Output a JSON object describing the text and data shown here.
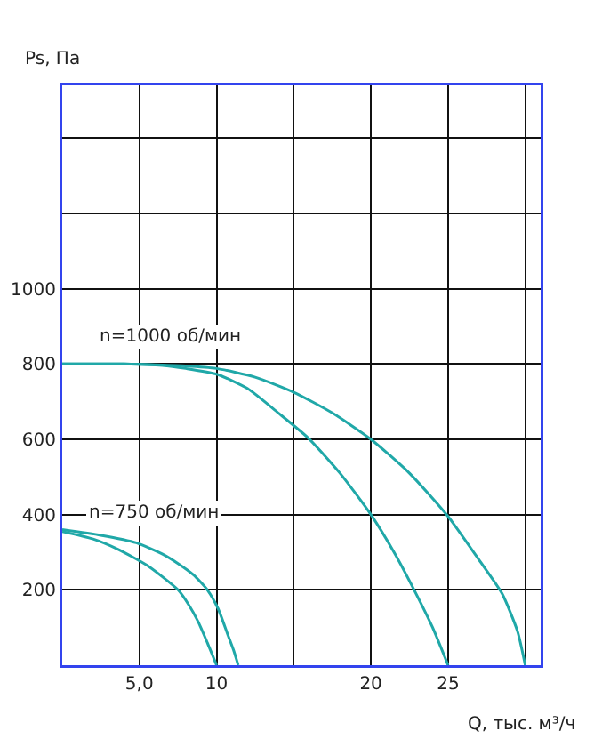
{
  "chart_data": {
    "type": "line",
    "xlabel": "Q, тыс. м³/ч",
    "ylabel": "Ps, Па",
    "xlim": [
      0,
      31
    ],
    "ylim": [
      0,
      1540
    ],
    "xticks": [
      {
        "value": 5,
        "label": "5,0"
      },
      10,
      {
        "value": 15,
        "label": null
      },
      20,
      25,
      {
        "value": 30,
        "label": null
      }
    ],
    "yticks": [
      200,
      400,
      600,
      800,
      1000,
      {
        "value": 1200,
        "label": null
      },
      {
        "value": 1400,
        "label": null
      }
    ],
    "grid": true,
    "marker": "none",
    "line_style": "solid",
    "series": [
      {
        "color": "#20a8a8",
        "x": [
          0,
          4,
          6,
          8,
          10,
          12.5,
          15,
          17.5,
          20,
          22.5,
          25,
          27,
          28.5,
          29.5,
          30
        ],
        "values": [
          800,
          800,
          798,
          795,
          788,
          765,
          725,
          670,
          600,
          510,
          395,
          280,
          190,
          90,
          0
        ]
      },
      {
        "color": "#20a8a8",
        "x": [
          0,
          4,
          6.5,
          8,
          10,
          12,
          14,
          15.9,
          18,
          20,
          21.5,
          22.8,
          24,
          25
        ],
        "values": [
          800,
          800,
          796,
          788,
          773,
          735,
          670,
          605,
          510,
          400,
          300,
          200,
          100,
          0
        ]
      },
      {
        "color": "#20a8a8",
        "x": [
          0,
          2.5,
          4.8,
          6.5,
          7.5,
          8.5,
          9.4,
          10.1,
          10.7,
          11.1,
          11.4
        ],
        "values": [
          360,
          345,
          325,
          295,
          270,
          240,
          200,
          150,
          84,
          40,
          0
        ]
      },
      {
        "color": "#20a8a8",
        "x": [
          0,
          2,
          3.6,
          5.5,
          7.5,
          8.2,
          8.8,
          9.4,
          10
        ],
        "values": [
          355,
          335,
          308,
          265,
          200,
          160,
          116,
          60,
          0
        ]
      }
    ],
    "annotations": [
      "n=1000 об/мин",
      "n=750 об/мин"
    ]
  }
}
